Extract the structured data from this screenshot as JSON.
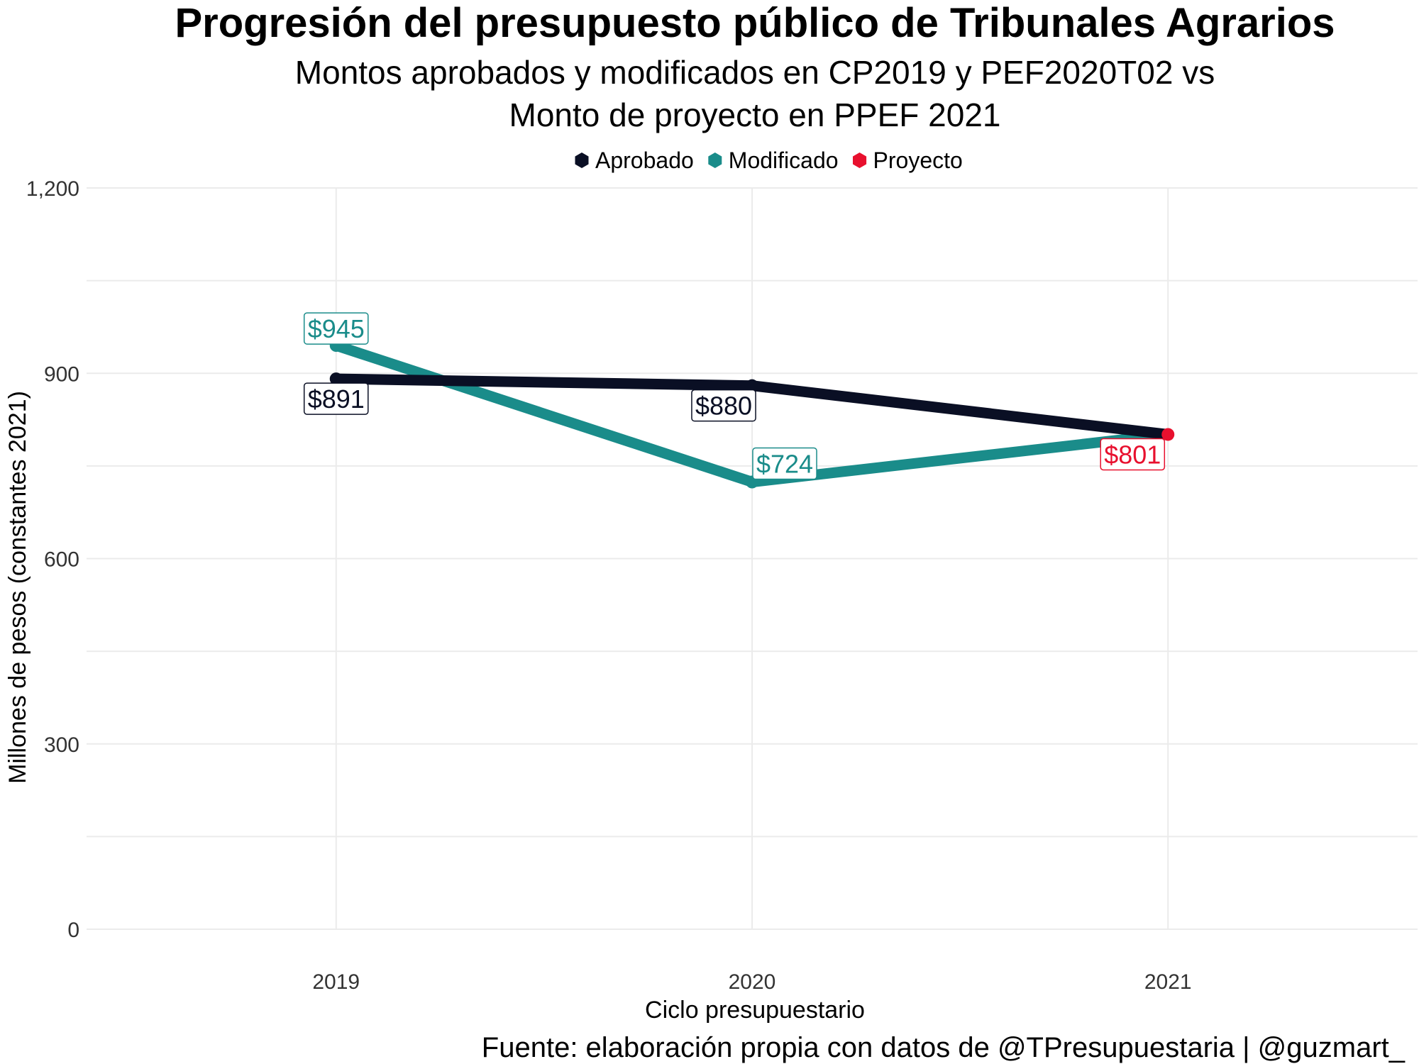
{
  "chart_data": {
    "type": "line",
    "title": "Progresión del presupuesto público de Tribunales Agrarios",
    "subtitle": [
      "Montos aprobados y modificados en CP2019 y PEF2020T02 vs",
      "Monto de proyecto en PPEF 2021"
    ],
    "xlabel": "Ciclo presupuestario",
    "ylabel": "Millones de pesos (constantes 2021)",
    "caption": "Fuente: elaboración propia con datos de @TPresupuestaria | @guzmart_",
    "x": [
      2019,
      2020,
      2021
    ],
    "x_tick_labels": [
      "2019",
      "2020",
      "2021"
    ],
    "xlim": [
      2018.4,
      2021.6
    ],
    "ylim": [
      0,
      1200
    ],
    "y_ticks": [
      0,
      300,
      600,
      900,
      1200
    ],
    "y_tick_labels": [
      "0",
      "300",
      "600",
      "900",
      "1,200"
    ],
    "grid": true,
    "legend_position": "top",
    "legend": [
      {
        "name": "Aprobado",
        "color": "#0a0f24"
      },
      {
        "name": "Modificado",
        "color": "#1a8c8a"
      },
      {
        "name": "Proyecto",
        "color": "#e8102e"
      }
    ],
    "series": [
      {
        "name": "Aprobado",
        "color": "#0a0f24",
        "x": [
          2019,
          2020,
          2021
        ],
        "values": [
          891,
          880,
          801
        ],
        "labels": [
          "$891",
          "$880",
          null
        ]
      },
      {
        "name": "Modificado",
        "color": "#1a8c8a",
        "x": [
          2019,
          2020,
          2021
        ],
        "values": [
          945,
          724,
          801
        ],
        "labels": [
          "$945",
          "$724",
          null
        ]
      },
      {
        "name": "Proyecto",
        "color": "#e8102e",
        "x": [
          2021
        ],
        "values": [
          801
        ],
        "labels": [
          "$801"
        ]
      }
    ]
  }
}
